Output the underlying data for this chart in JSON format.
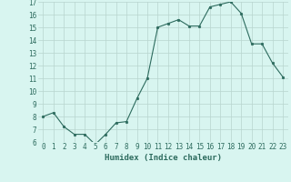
{
  "x": [
    0,
    1,
    2,
    3,
    4,
    5,
    6,
    7,
    8,
    9,
    10,
    11,
    12,
    13,
    14,
    15,
    16,
    17,
    18,
    19,
    20,
    21,
    22,
    23
  ],
  "y": [
    8,
    8.3,
    7.2,
    6.6,
    6.6,
    5.8,
    6.6,
    7.5,
    7.6,
    9.4,
    11.0,
    15.0,
    15.3,
    15.6,
    15.1,
    15.1,
    16.6,
    16.8,
    17.0,
    16.1,
    13.7,
    13.7,
    12.2,
    11.1
  ],
  "xlabel": "Humidex (Indice chaleur)",
  "ylim": [
    6,
    17
  ],
  "xlim": [
    -0.5,
    23.5
  ],
  "yticks": [
    6,
    7,
    8,
    9,
    10,
    11,
    12,
    13,
    14,
    15,
    16,
    17
  ],
  "xticks": [
    0,
    1,
    2,
    3,
    4,
    5,
    6,
    7,
    8,
    9,
    10,
    11,
    12,
    13,
    14,
    15,
    16,
    17,
    18,
    19,
    20,
    21,
    22,
    23
  ],
  "line_color": "#2d6b5e",
  "marker_color": "#2d6b5e",
  "bg_color": "#d8f5f0",
  "grid_color": "#b8d4ce",
  "axis_label_color": "#2d6b5e",
  "tick_color": "#2d6b5e",
  "xlabel_fontsize": 6.5,
  "tick_fontsize": 5.5
}
